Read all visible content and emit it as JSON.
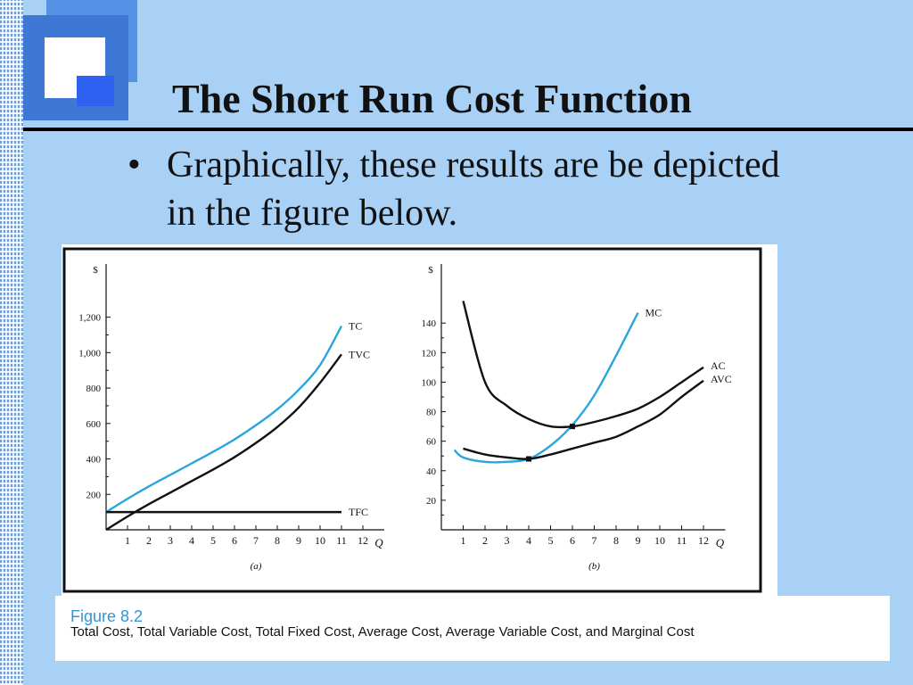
{
  "slide": {
    "title": "The Short Run Cost Function",
    "bullet_symbol": "•",
    "bullet": "Graphically, these results are be depicted in the figure below."
  },
  "figure": {
    "label": "Figure 8.2",
    "caption": "Total Cost, Total Variable Cost, Total Fixed Cost, Average Cost, Average Variable Cost, and Marginal Cost"
  },
  "colors": {
    "background": "#a9d0f5",
    "accent_blue_curve": "#2aa6dd",
    "black_curve": "#111111",
    "caption_head": "#2f97d8"
  },
  "chart_data": [
    {
      "type": "line",
      "panel_label": "(a)",
      "ylabel": "$",
      "xlabel": "Q",
      "x_ticks": [
        "1",
        "2",
        "3",
        "4",
        "5",
        "6",
        "7",
        "8",
        "9",
        "10",
        "11",
        "12"
      ],
      "y_ticks": [
        "200",
        "400",
        "600",
        "800",
        "1,000",
        "1,200"
      ],
      "y_tick_values": [
        200,
        400,
        600,
        800,
        1000,
        1200
      ],
      "xlim": [
        0,
        13
      ],
      "ylim": [
        0,
        1500
      ],
      "grid": false,
      "series": [
        {
          "name": "TC",
          "color": "accent_blue_curve",
          "x": [
            0,
            1,
            2,
            3,
            4,
            5,
            6,
            7,
            8,
            9,
            10,
            11
          ],
          "y": [
            100,
            175,
            245,
            310,
            375,
            440,
            510,
            590,
            680,
            790,
            930,
            1150
          ]
        },
        {
          "name": "TVC",
          "color": "black_curve",
          "x": [
            0,
            1,
            2,
            3,
            4,
            5,
            6,
            7,
            8,
            9,
            10,
            11
          ],
          "y": [
            0,
            75,
            145,
            210,
            275,
            340,
            410,
            490,
            580,
            690,
            830,
            990
          ]
        },
        {
          "name": "TFC",
          "color": "black_curve",
          "x": [
            0,
            11
          ],
          "y": [
            100,
            100
          ]
        }
      ]
    },
    {
      "type": "line",
      "panel_label": "(b)",
      "ylabel": "$",
      "xlabel": "Q",
      "x_ticks": [
        "1",
        "2",
        "3",
        "4",
        "5",
        "6",
        "7",
        "8",
        "9",
        "10",
        "11",
        "12"
      ],
      "y_ticks": [
        "20",
        "40",
        "60",
        "80",
        "100",
        "120",
        "140"
      ],
      "y_tick_values": [
        20,
        40,
        60,
        80,
        100,
        120,
        140
      ],
      "xlim": [
        0,
        13
      ],
      "ylim": [
        0,
        180
      ],
      "grid": false,
      "series": [
        {
          "name": "MC",
          "color": "accent_blue_curve",
          "x": [
            0.6,
            1,
            2,
            3,
            4,
            5,
            6,
            7,
            8,
            9
          ],
          "y": [
            54,
            49,
            46,
            46,
            48,
            57,
            71,
            91,
            118,
            147
          ]
        },
        {
          "name": "AC",
          "color": "black_curve",
          "x": [
            1,
            2,
            3,
            4,
            5,
            6,
            7,
            8,
            9,
            10,
            11,
            12
          ],
          "y": [
            155,
            100,
            84,
            75,
            70,
            70,
            73,
            77,
            82,
            90,
            100,
            110
          ]
        },
        {
          "name": "AVC",
          "color": "black_curve",
          "x": [
            1,
            2,
            3,
            4,
            5,
            6,
            7,
            8,
            9,
            10,
            11,
            12
          ],
          "y": [
            55,
            51,
            49,
            48,
            51,
            55,
            59,
            63,
            70,
            78,
            90,
            101
          ]
        }
      ],
      "markers": [
        {
          "x": 4,
          "y": 48
        },
        {
          "x": 6,
          "y": 70
        }
      ]
    }
  ]
}
